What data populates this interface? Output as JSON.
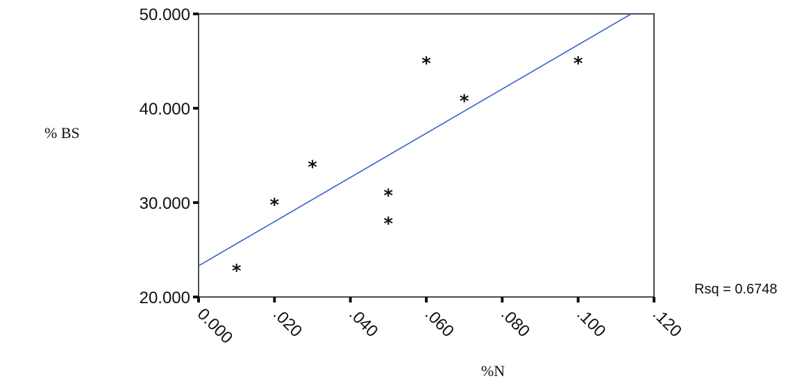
{
  "chart_data": {
    "type": "scatter",
    "title": "",
    "xlabel": "%N",
    "ylabel": "% BS",
    "xlim": [
      0.0,
      0.12
    ],
    "ylim": [
      20.0,
      50.0
    ],
    "x_ticks": [
      "0.000",
      ".020",
      ".040",
      ".060",
      ".080",
      ".100",
      ".120"
    ],
    "y_ticks": [
      "20.000",
      "30.000",
      "40.000",
      "50.000"
    ],
    "grid": false,
    "points": [
      {
        "x": 0.01,
        "y": 23.0
      },
      {
        "x": 0.02,
        "y": 30.0
      },
      {
        "x": 0.03,
        "y": 34.0
      },
      {
        "x": 0.05,
        "y": 31.0
      },
      {
        "x": 0.05,
        "y": 28.0
      },
      {
        "x": 0.06,
        "y": 45.0
      },
      {
        "x": 0.07,
        "y": 41.0
      },
      {
        "x": 0.1,
        "y": 45.0
      }
    ],
    "fit_line": {
      "x": [
        0.0,
        0.114
      ],
      "y": [
        23.3,
        50.0
      ],
      "color": "#3a5fcd"
    },
    "annotation": "Rsq = 0.6748",
    "marker": "*"
  }
}
